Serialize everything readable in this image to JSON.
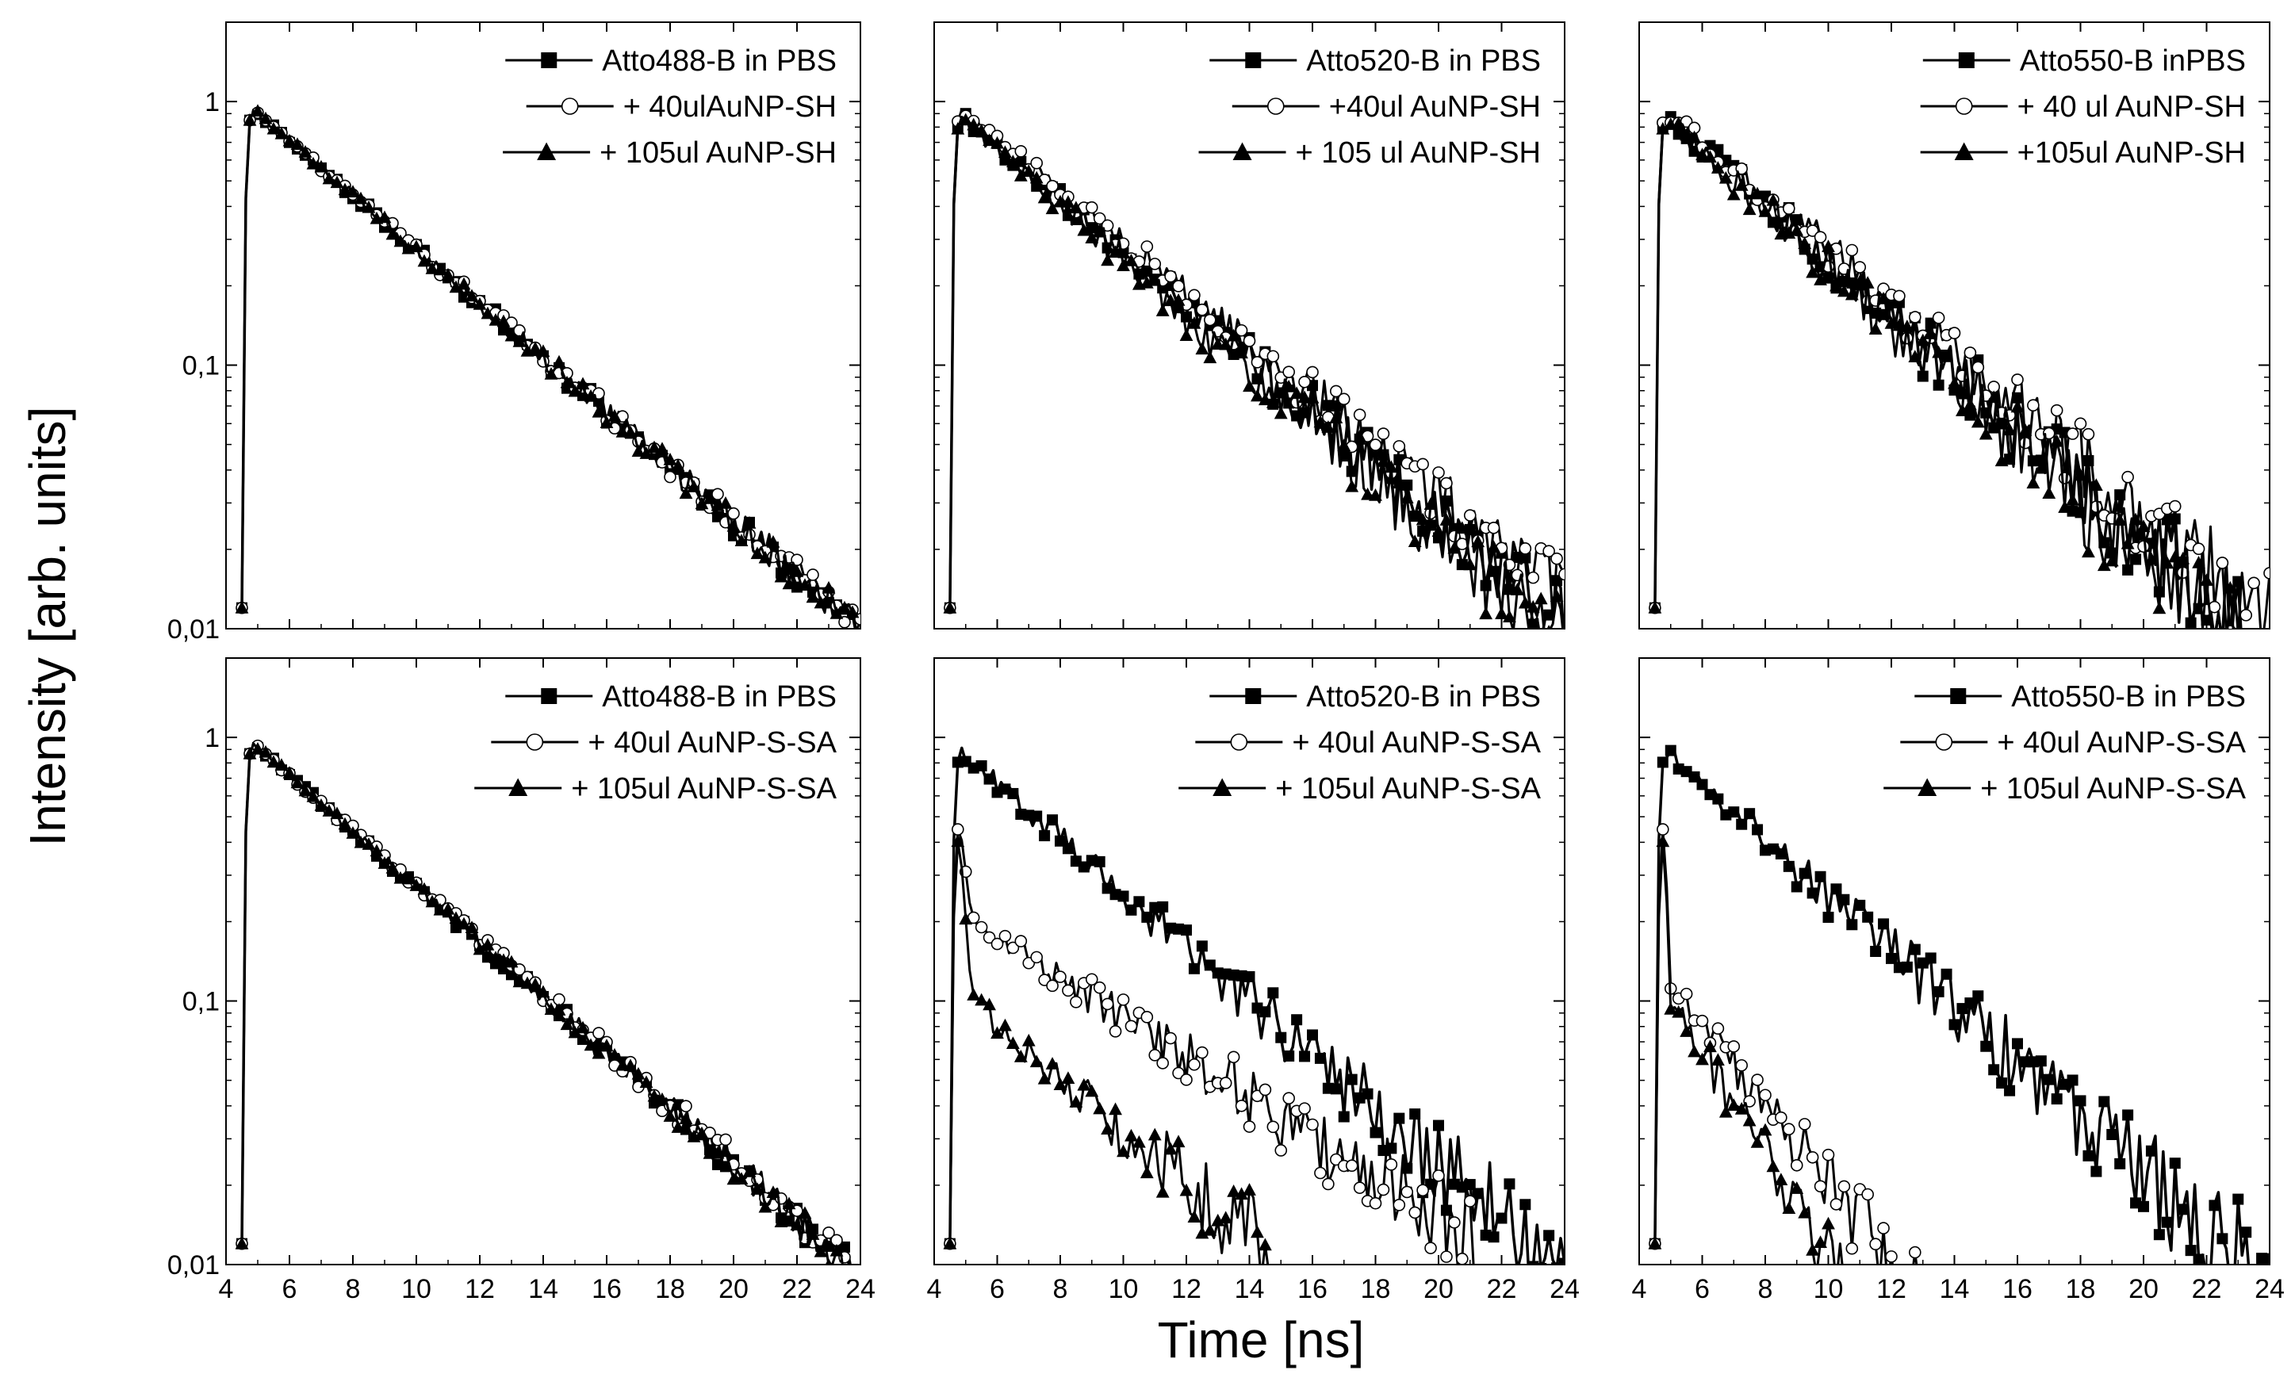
{
  "figure": {
    "ylabel": "Intensity [arb. units]",
    "xlabel": "Time [ns]"
  },
  "chart_data": [
    {
      "type": "line",
      "title": "",
      "yscale": "log",
      "xlim": [
        4,
        24
      ],
      "ylim": [
        0.01,
        2
      ],
      "xticks": [
        4,
        6,
        8,
        10,
        12,
        14,
        16,
        18,
        20,
        22,
        24
      ],
      "yticks": [
        {
          "value": 1,
          "label": "1"
        },
        {
          "value": 0.1,
          "label": "0,1"
        },
        {
          "value": 0.01,
          "label": "0,01"
        }
      ],
      "show_y_tick_labels": true,
      "legend_position": "top-right",
      "series": [
        {
          "name": "Atto488-B in PBS",
          "marker": "square",
          "tau": 4.21,
          "peak": 0.95,
          "start": 4.5,
          "noise": 0.02
        },
        {
          "name": "+ 40ulAuNP-SH",
          "marker": "circle",
          "tau": 4.24,
          "peak": 0.95,
          "start": 4.5,
          "noise": 0.02
        },
        {
          "name": "+ 105ul AuNP-SH",
          "marker": "triangle",
          "tau": 4.21,
          "peak": 0.95,
          "start": 4.5,
          "noise": 0.02
        }
      ]
    },
    {
      "type": "line",
      "title": "",
      "yscale": "log",
      "xlim": [
        4,
        24
      ],
      "ylim": [
        0.01,
        2
      ],
      "xticks": [
        4,
        6,
        8,
        10,
        12,
        14,
        16,
        18,
        20,
        22,
        24
      ],
      "yticks": [
        {
          "value": 1,
          "label": "1"
        },
        {
          "value": 0.1,
          "label": "0,1"
        },
        {
          "value": 0.01,
          "label": "0,01"
        }
      ],
      "show_y_tick_labels": false,
      "legend_position": "top-right",
      "series": [
        {
          "name": "Atto520-B in PBS",
          "marker": "square",
          "tau": 4.3,
          "peak": 0.9,
          "start": 4.5,
          "noise": 0.05
        },
        {
          "name": "+40ul AuNP-SH",
          "marker": "circle",
          "tau": 4.5,
          "peak": 0.94,
          "start": 4.5,
          "noise": 0.04
        },
        {
          "name": "+ 105 ul AuNP-SH",
          "marker": "triangle",
          "tau": 4.15,
          "peak": 0.88,
          "start": 4.5,
          "noise": 0.05
        }
      ]
    },
    {
      "type": "line",
      "title": "",
      "yscale": "log",
      "xlim": [
        4,
        24
      ],
      "ylim": [
        0.01,
        2
      ],
      "xticks": [
        4,
        6,
        8,
        10,
        12,
        14,
        16,
        18,
        20,
        22,
        24
      ],
      "yticks": [
        {
          "value": 1,
          "label": "1"
        },
        {
          "value": 0.1,
          "label": "0,1"
        },
        {
          "value": 0.01,
          "label": "0,01"
        }
      ],
      "show_y_tick_labels": false,
      "legend_position": "top-right",
      "series": [
        {
          "name": "Atto550-B inPBS",
          "marker": "square",
          "tau": 4.05,
          "peak": 0.9,
          "start": 4.5,
          "noise": 0.07
        },
        {
          "name": "+ 40 ul AuNP-SH",
          "marker": "circle",
          "tau": 4.3,
          "peak": 0.93,
          "start": 4.5,
          "noise": 0.06
        },
        {
          "name": "+105ul AuNP-SH",
          "marker": "triangle",
          "tau": 3.95,
          "peak": 0.88,
          "start": 4.5,
          "noise": 0.07
        }
      ]
    },
    {
      "type": "line",
      "title": "",
      "yscale": "log",
      "xlim": [
        4,
        24
      ],
      "ylim": [
        0.01,
        2
      ],
      "xticks": [
        4,
        6,
        8,
        10,
        12,
        14,
        16,
        18,
        20,
        22,
        24
      ],
      "yticks": [
        {
          "value": 1,
          "label": "1"
        },
        {
          "value": 0.1,
          "label": "0,1"
        },
        {
          "value": 0.01,
          "label": "0,01"
        }
      ],
      "show_y_tick_labels": true,
      "legend_position": "top-right",
      "series": [
        {
          "name": "Atto488-B in PBS",
          "marker": "square",
          "tau": 4.1,
          "peak": 0.97,
          "start": 4.5,
          "noise": 0.02
        },
        {
          "name": "+ 40ul AuNP-S-SA",
          "marker": "circle",
          "tau": 4.15,
          "peak": 0.97,
          "start": 4.5,
          "noise": 0.02
        },
        {
          "name": "+ 105ul AuNP-S-SA",
          "marker": "triangle",
          "tau": 4.1,
          "peak": 0.97,
          "start": 4.5,
          "noise": 0.02
        }
      ]
    },
    {
      "type": "line",
      "title": "",
      "yscale": "log",
      "xlim": [
        4,
        24
      ],
      "ylim": [
        0.01,
        2
      ],
      "xticks": [
        4,
        6,
        8,
        10,
        12,
        14,
        16,
        18,
        20,
        22,
        24
      ],
      "yticks": [
        {
          "value": 1,
          "label": "1"
        },
        {
          "value": 0.1,
          "label": "0,1"
        },
        {
          "value": 0.01,
          "label": "0,01"
        }
      ],
      "show_y_tick_labels": false,
      "legend_position": "top-right",
      "series": [
        {
          "name": "Atto520-B in PBS",
          "marker": "square",
          "tau": 4.2,
          "peak": 0.9,
          "start": 4.5,
          "noise": 0.06
        },
        {
          "name": "+ 40ul AuNP-S-SA",
          "marker": "circle",
          "tau": 5.8,
          "peak": 0.5,
          "start": 4.5,
          "noise": 0.07,
          "fast_to": 0.2,
          "fast_end": 5.2,
          "cutoff": 21.0
        },
        {
          "name": "+ 105ul AuNP-S-SA",
          "marker": "triangle",
          "tau": 4.3,
          "peak": 0.45,
          "start": 4.5,
          "noise": 0.1,
          "fast_to": 0.1,
          "fast_end": 5.2,
          "cutoff": 14.5
        }
      ]
    },
    {
      "type": "line",
      "title": "",
      "yscale": "log",
      "xlim": [
        4,
        24
      ],
      "ylim": [
        0.01,
        2
      ],
      "xticks": [
        4,
        6,
        8,
        10,
        12,
        14,
        16,
        18,
        20,
        22,
        24
      ],
      "yticks": [
        {
          "value": 1,
          "label": "1"
        },
        {
          "value": 0.1,
          "label": "0,1"
        },
        {
          "value": 0.01,
          "label": "0,01"
        }
      ],
      "show_y_tick_labels": false,
      "legend_position": "top-right",
      "series": [
        {
          "name": "Atto550-B in PBS",
          "marker": "square",
          "tau": 4.1,
          "peak": 0.9,
          "start": 4.5,
          "noise": 0.07
        },
        {
          "name": "+ 40ul AuNP-S-SA",
          "marker": "circle",
          "tau": 2.8,
          "peak": 0.5,
          "start": 4.5,
          "noise": 0.12,
          "fast_to": 0.12,
          "fast_end": 5.0,
          "cutoff": 15.5
        },
        {
          "name": "+ 105ul AuNP-S-SA",
          "marker": "triangle",
          "tau": 2.2,
          "peak": 0.45,
          "start": 4.5,
          "noise": 0.12,
          "fast_to": 0.1,
          "fast_end": 5.0,
          "cutoff": 12.5
        }
      ]
    }
  ]
}
